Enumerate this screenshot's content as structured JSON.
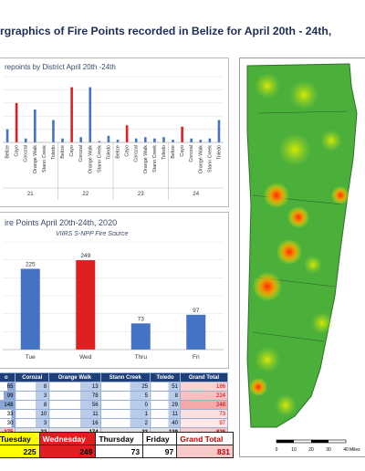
{
  "title": "rgraphics of Fire Points recorded in Belize for April 20th - 24th,",
  "chart_data": [
    {
      "type": "bar",
      "title": "repoints by District April 20th -24th",
      "groups": [
        {
          "label": "21",
          "categories": [
            "Belize",
            "Cayo",
            "Corozal",
            "Orange Walk",
            "Stann Creek",
            "Toledo"
          ],
          "values": [
            10,
            30,
            3,
            25,
            0,
            17
          ]
        },
        {
          "label": "22",
          "categories": [
            "Belize",
            "Cayo",
            "Corozal",
            "Orange Walk",
            "Stann Creek",
            "Toledo"
          ],
          "values": [
            3,
            42,
            4,
            42,
            1,
            5
          ]
        },
        {
          "label": "23",
          "categories": [
            "Belize",
            "Cayo",
            "Corozal",
            "Orange Walk",
            "Stann Creek",
            "Toledo"
          ],
          "values": [
            2,
            13,
            3,
            4,
            3,
            4
          ]
        },
        {
          "label": "24",
          "categories": [
            "Belize",
            "Cayo",
            "Corozal",
            "Orange Walk",
            "Stann Creek",
            "Toledo"
          ],
          "values": [
            2,
            12,
            3,
            2,
            3,
            17
          ]
        }
      ],
      "colors": {
        "Cayo": "#e02020",
        "default": "#4472c4"
      },
      "ylim": [
        0,
        50
      ]
    },
    {
      "type": "bar",
      "title": "ire Points April 20th-24th, 2020",
      "subtitle": "VIIRS S-NPP Fire Source",
      "categories": [
        "Tue",
        "Wed",
        "Thru",
        "Fri"
      ],
      "values": [
        225,
        249,
        73,
        97
      ],
      "colors": [
        "#4472c4",
        "#e02020",
        "#4472c4",
        "#4472c4"
      ],
      "ylim": [
        0,
        300
      ]
    }
  ],
  "district_table": {
    "headers": [
      "o",
      "Corozal",
      "Orange Walk",
      "Stann Creek",
      "Toledo",
      "Grand Total"
    ],
    "rows": [
      [
        "65",
        "8",
        "13",
        "25",
        "51",
        "186"
      ],
      [
        "99",
        "3",
        "78",
        "5",
        "8",
        "224"
      ],
      [
        "148",
        "8",
        "56",
        "0",
        "29",
        "248"
      ],
      [
        "33",
        "10",
        "11",
        "1",
        "11",
        "73"
      ],
      [
        "30",
        "3",
        "16",
        "2",
        "40",
        "97"
      ]
    ],
    "total": [
      "375",
      "32",
      "174",
      "33",
      "139",
      "828"
    ]
  },
  "day_table": {
    "headers": [
      "Tuesday",
      "Wednesday",
      "Thursday",
      "Friday",
      "Grand Total"
    ],
    "values": [
      "225",
      "249",
      "73",
      "97",
      "831"
    ]
  },
  "map": {
    "scale_labels": [
      "0",
      "10",
      "20",
      "30",
      "40"
    ],
    "scale_unit": "Miles"
  }
}
